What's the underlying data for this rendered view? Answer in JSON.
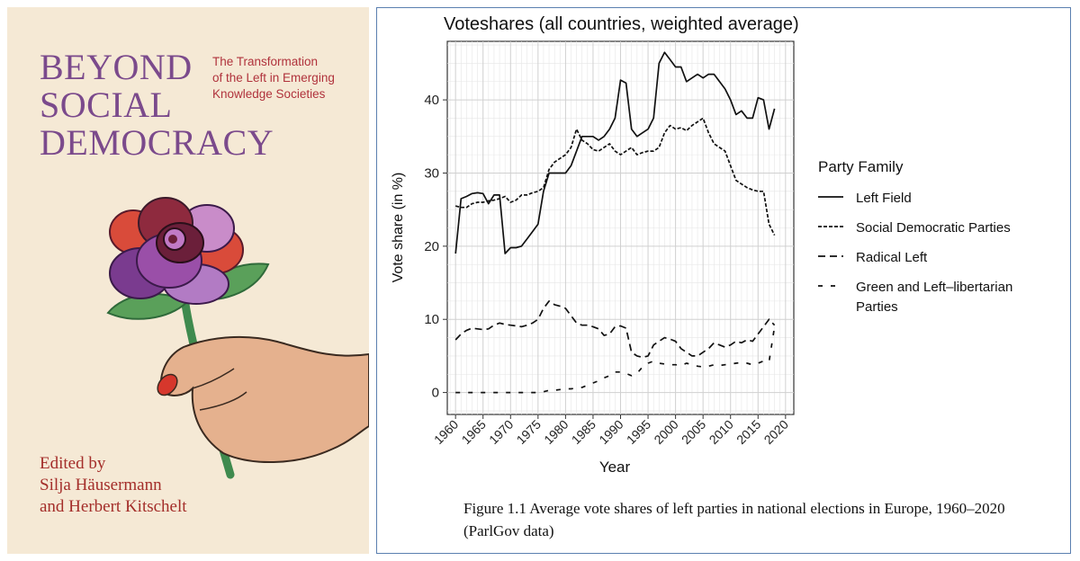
{
  "cover": {
    "title_lines": [
      "BEYOND",
      "SOCIAL",
      "DEMOCRACY"
    ],
    "subtitle_lines": [
      "The Transformation",
      "of the Left in Emerging",
      "Knowledge Societies"
    ],
    "editors_lines": [
      "Edited by",
      "Silja Häusermann",
      "and Herbert Kitschelt"
    ],
    "colors": {
      "background": "#f5e9d5",
      "title": "#7b4a8c",
      "subtitle": "#b0323c",
      "editors": "#a42e2a"
    },
    "illustration": "hand-holding-rose"
  },
  "caption": {
    "text": "Figure 1.1 Average vote shares of left parties in national elections in Europe, 1960–2020 (ParlGov data)"
  },
  "chart_data": {
    "type": "line",
    "title": "Voteshares (all countries, weighted average)",
    "xlabel": "Year",
    "ylabel": "Vote share (in %)",
    "xlim": [
      1958.5,
      2021.5
    ],
    "ylim": [
      -3,
      48
    ],
    "xticks": [
      1960,
      1965,
      1970,
      1975,
      1980,
      1985,
      1990,
      1995,
      2000,
      2005,
      2010,
      2015,
      2020
    ],
    "yticks": [
      0,
      10,
      20,
      30,
      40
    ],
    "grid": true,
    "legend": {
      "title": "Party Family",
      "position": "right"
    },
    "series": [
      {
        "name": "Left Field",
        "dash": "solid",
        "x": [
          1960,
          1961,
          1962,
          1963,
          1964,
          1965,
          1966,
          1967,
          1968,
          1969,
          1970,
          1971,
          1972,
          1973,
          1974,
          1975,
          1976,
          1977,
          1978,
          1979,
          1980,
          1981,
          1982,
          1983,
          1984,
          1985,
          1986,
          1987,
          1988,
          1989,
          1990,
          1991,
          1992,
          1993,
          1994,
          1995,
          1996,
          1997,
          1998,
          1999,
          2000,
          2001,
          2002,
          2003,
          2004,
          2005,
          2006,
          2007,
          2008,
          2009,
          2010,
          2011,
          2012,
          2013,
          2014,
          2015,
          2016,
          2017,
          2018
        ],
        "y": [
          19,
          26.5,
          26.8,
          27.2,
          27.3,
          27.2,
          25.8,
          27,
          27,
          19,
          19.8,
          19.8,
          20,
          21,
          22,
          23,
          27.5,
          30,
          30,
          30,
          30,
          31,
          33,
          35,
          35,
          35,
          34.5,
          35,
          36,
          37.5,
          42.7,
          42.3,
          36,
          35,
          35.5,
          36,
          37.5,
          45,
          46.5,
          45.5,
          44.5,
          44.5,
          42.5,
          43,
          43.5,
          43,
          43.5,
          43.5,
          42.5,
          41.5,
          40,
          38,
          38.5,
          37.5,
          37.5,
          40.3,
          40,
          36,
          38.8
        ]
      },
      {
        "name": "Social Democratic Parties",
        "dash": "4,2",
        "x": [
          1960,
          1961,
          1962,
          1963,
          1964,
          1965,
          1966,
          1967,
          1968,
          1969,
          1970,
          1971,
          1972,
          1973,
          1974,
          1975,
          1976,
          1977,
          1978,
          1979,
          1980,
          1981,
          1982,
          1983,
          1984,
          1985,
          1986,
          1987,
          1988,
          1989,
          1990,
          1991,
          1992,
          1993,
          1994,
          1995,
          1996,
          1997,
          1998,
          1999,
          2000,
          2001,
          2002,
          2003,
          2004,
          2005,
          2006,
          2007,
          2008,
          2009,
          2010,
          2011,
          2012,
          2013,
          2014,
          2015,
          2016,
          2017,
          2018
        ],
        "y": [
          25.5,
          25.3,
          25.3,
          25.8,
          26,
          26,
          26.2,
          26.3,
          26.5,
          26.8,
          26,
          26.3,
          27,
          27,
          27.3,
          27.5,
          28,
          30.5,
          31.5,
          32,
          32.5,
          33.5,
          36,
          34.5,
          34,
          33.2,
          33,
          33.5,
          34,
          33,
          32.5,
          33,
          33.5,
          32.5,
          32.8,
          33,
          33,
          33.5,
          35.5,
          36.5,
          36,
          36.2,
          35.8,
          36.5,
          37,
          37.5,
          35.5,
          34,
          33.5,
          33,
          31,
          29,
          28.5,
          28,
          27.7,
          27.5,
          27.5,
          23,
          21.5
        ]
      },
      {
        "name": "Radical Left",
        "dash": "8,5",
        "x": [
          1960,
          1961,
          1962,
          1963,
          1964,
          1965,
          1966,
          1967,
          1968,
          1969,
          1970,
          1971,
          1972,
          1973,
          1974,
          1975,
          1976,
          1977,
          1978,
          1979,
          1980,
          1981,
          1982,
          1983,
          1984,
          1985,
          1986,
          1987,
          1988,
          1989,
          1990,
          1991,
          1992,
          1993,
          1994,
          1995,
          1996,
          1997,
          1998,
          1999,
          2000,
          2001,
          2002,
          2003,
          2004,
          2005,
          2006,
          2007,
          2008,
          2009,
          2010,
          2011,
          2012,
          2013,
          2014,
          2015,
          2016,
          2017,
          2018
        ],
        "y": [
          7.2,
          8,
          8.5,
          8.8,
          8.7,
          8.6,
          8.7,
          9.2,
          9.5,
          9.3,
          9.2,
          9.1,
          9,
          9.2,
          9.5,
          10,
          11.5,
          12.5,
          12,
          11.8,
          11.5,
          10.5,
          9.5,
          9.2,
          9.2,
          9,
          8.7,
          7.8,
          8,
          9,
          9.1,
          8.8,
          5.5,
          5,
          4.8,
          5,
          6.5,
          7,
          7.5,
          7.3,
          7,
          6,
          5.5,
          5,
          5,
          5.5,
          6,
          6.8,
          6.5,
          6.2,
          6.5,
          7,
          6.8,
          7.2,
          7,
          8,
          9,
          10,
          9.2
        ]
      },
      {
        "name": "Green and Left–libertarian Parties",
        "dash": "5,9",
        "x": [
          1960,
          1961,
          1962,
          1963,
          1964,
          1965,
          1966,
          1967,
          1968,
          1969,
          1970,
          1971,
          1972,
          1973,
          1974,
          1975,
          1976,
          1977,
          1978,
          1979,
          1980,
          1981,
          1982,
          1983,
          1984,
          1985,
          1986,
          1987,
          1988,
          1989,
          1990,
          1991,
          1992,
          1993,
          1994,
          1995,
          1996,
          1997,
          1998,
          1999,
          2000,
          2001,
          2002,
          2003,
          2004,
          2005,
          2006,
          2007,
          2008,
          2009,
          2010,
          2011,
          2012,
          2013,
          2014,
          2015,
          2016,
          2017,
          2018
        ],
        "y": [
          0,
          0,
          0,
          0,
          0,
          0,
          0,
          0,
          0,
          0,
          0,
          0,
          0,
          0,
          0,
          0,
          0.1,
          0.3,
          0.3,
          0.4,
          0.5,
          0.5,
          0.6,
          0.7,
          1,
          1.3,
          1.6,
          2,
          2.3,
          2.8,
          2.8,
          2.6,
          2.3,
          2.6,
          3.5,
          4,
          4.3,
          4,
          3.9,
          3.8,
          3.8,
          3.7,
          4,
          3.8,
          3.6,
          3.5,
          3.6,
          3.8,
          3.7,
          3.8,
          3.9,
          4,
          4.1,
          4,
          3.8,
          4,
          4.3,
          4.2,
          9
        ]
      }
    ]
  }
}
